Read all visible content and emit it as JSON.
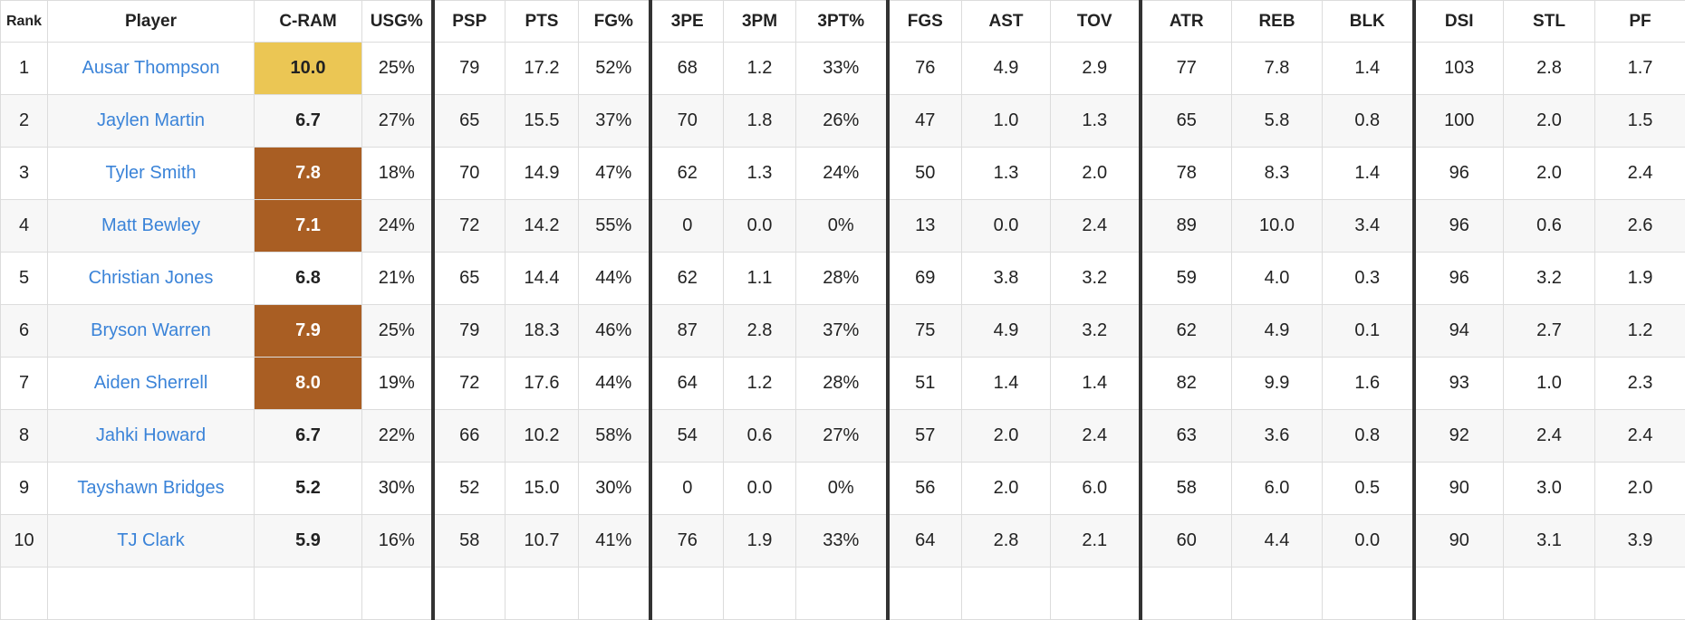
{
  "colors": {
    "gold": "#ebc654",
    "brown": "#a95e23",
    "link": "#3a83d8"
  },
  "columns": [
    "Rank",
    "Player",
    "C-RAM",
    "USG%",
    "PSP",
    "PTS",
    "FG%",
    "3PE",
    "3PM",
    "3PT%",
    "FGS",
    "AST",
    "TOV",
    "ATR",
    "REB",
    "BLK",
    "DSI",
    "STL",
    "PF"
  ],
  "rows": [
    {
      "cells": [
        "1",
        "Ausar Thompson",
        "10.0",
        "25%",
        "79",
        "17.2",
        "52%",
        "68",
        "1.2",
        "33%",
        "76",
        "4.9",
        "2.9",
        "77",
        "7.8",
        "1.4",
        "103",
        "2.8",
        "1.7"
      ],
      "cram_tier": "gold"
    },
    {
      "cells": [
        "2",
        "Jaylen Martin",
        "6.7",
        "27%",
        "65",
        "15.5",
        "37%",
        "70",
        "1.8",
        "26%",
        "47",
        "1.0",
        "1.3",
        "65",
        "5.8",
        "0.8",
        "100",
        "2.0",
        "1.5"
      ],
      "cram_tier": "none"
    },
    {
      "cells": [
        "3",
        "Tyler Smith",
        "7.8",
        "18%",
        "70",
        "14.9",
        "47%",
        "62",
        "1.3",
        "24%",
        "50",
        "1.3",
        "2.0",
        "78",
        "8.3",
        "1.4",
        "96",
        "2.0",
        "2.4"
      ],
      "cram_tier": "brown"
    },
    {
      "cells": [
        "4",
        "Matt Bewley",
        "7.1",
        "24%",
        "72",
        "14.2",
        "55%",
        "0",
        "0.0",
        "0%",
        "13",
        "0.0",
        "2.4",
        "89",
        "10.0",
        "3.4",
        "96",
        "0.6",
        "2.6"
      ],
      "cram_tier": "brown"
    },
    {
      "cells": [
        "5",
        "Christian Jones",
        "6.8",
        "21%",
        "65",
        "14.4",
        "44%",
        "62",
        "1.1",
        "28%",
        "69",
        "3.8",
        "3.2",
        "59",
        "4.0",
        "0.3",
        "96",
        "3.2",
        "1.9"
      ],
      "cram_tier": "none"
    },
    {
      "cells": [
        "6",
        "Bryson Warren",
        "7.9",
        "25%",
        "79",
        "18.3",
        "46%",
        "87",
        "2.8",
        "37%",
        "75",
        "4.9",
        "3.2",
        "62",
        "4.9",
        "0.1",
        "94",
        "2.7",
        "1.2"
      ],
      "cram_tier": "brown"
    },
    {
      "cells": [
        "7",
        "Aiden Sherrell",
        "8.0",
        "19%",
        "72",
        "17.6",
        "44%",
        "64",
        "1.2",
        "28%",
        "51",
        "1.4",
        "1.4",
        "82",
        "9.9",
        "1.6",
        "93",
        "1.0",
        "2.3"
      ],
      "cram_tier": "brown"
    },
    {
      "cells": [
        "8",
        "Jahki Howard",
        "6.7",
        "22%",
        "66",
        "10.2",
        "58%",
        "54",
        "0.6",
        "27%",
        "57",
        "2.0",
        "2.4",
        "63",
        "3.6",
        "0.8",
        "92",
        "2.4",
        "2.4"
      ],
      "cram_tier": "none"
    },
    {
      "cells": [
        "9",
        "Tayshawn Bridges",
        "5.2",
        "30%",
        "52",
        "15.0",
        "30%",
        "0",
        "0.0",
        "0%",
        "56",
        "2.0",
        "6.0",
        "58",
        "6.0",
        "0.5",
        "90",
        "3.0",
        "2.0"
      ],
      "cram_tier": "none"
    },
    {
      "cells": [
        "10",
        "TJ Clark",
        "5.9",
        "16%",
        "58",
        "10.7",
        "41%",
        "76",
        "1.9",
        "33%",
        "64",
        "2.8",
        "2.1",
        "60",
        "4.4",
        "0.0",
        "90",
        "3.1",
        "3.9"
      ],
      "cram_tier": "none"
    },
    {
      "cells": [
        "",
        "",
        "",
        "",
        "",
        "",
        "",
        "",
        "",
        "",
        "",
        "",
        "",
        "",
        "",
        "",
        "",
        "",
        ""
      ],
      "cram_tier": "none"
    }
  ]
}
